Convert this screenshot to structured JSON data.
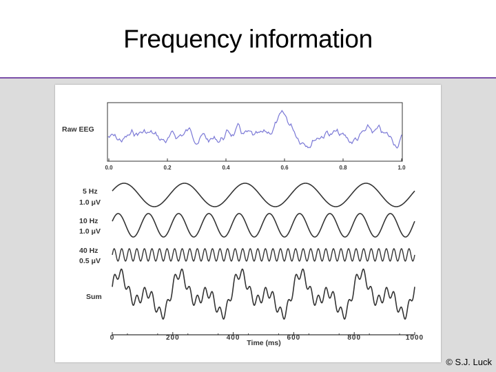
{
  "slide": {
    "title": "Frequency information",
    "copyright": "© S.J. Luck"
  },
  "raw_eeg": {
    "label": "Raw EEG",
    "xticks": [
      "0.0",
      "0.2",
      "0.4",
      "0.6",
      "0.8",
      "1.0"
    ]
  },
  "waves": [
    {
      "label_line1": "5 Hz",
      "label_line2": "1.0 μV"
    },
    {
      "label_line1": "10 Hz",
      "label_line2": "1.0 μV"
    },
    {
      "label_line1": "40 Hz",
      "label_line2": "0.5 μV"
    },
    {
      "label_line1": "Sum",
      "label_line2": ""
    }
  ],
  "time_axis": {
    "ticks": [
      "0",
      "200",
      "400",
      "600",
      "800",
      "1000"
    ],
    "label": "Time (ms)"
  },
  "colors": {
    "title_rule": "#7a4ea8",
    "raw_eeg_trace": "#7a78d6",
    "wave_stroke": "#333333",
    "background": "#dcdcdc"
  }
}
